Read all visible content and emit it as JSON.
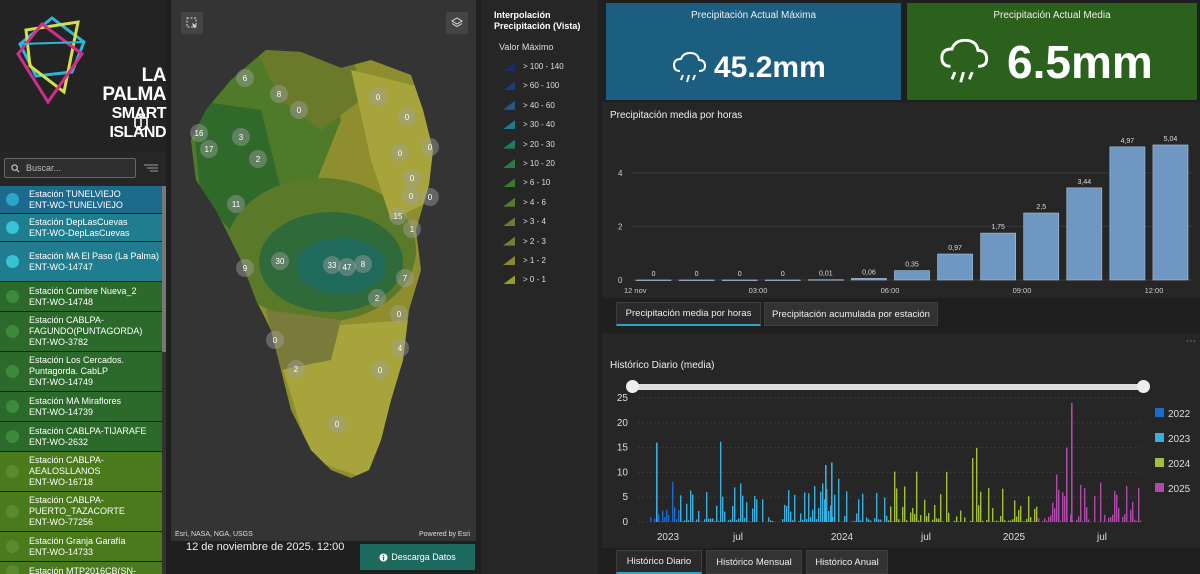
{
  "logo": {
    "line1": "LA PALMA",
    "line2": "SMART ISLAND"
  },
  "search": {
    "placeholder": "Buscar..."
  },
  "stations": [
    {
      "name": "Estación TUNELVIEJO",
      "code": "ENT-WO-TUNELVIEJO",
      "color": "#1c6a8c",
      "dot": "#2aa6c7"
    },
    {
      "name": "Estación DepLasCuevas",
      "code": "ENT-WO-DepLasCuevas",
      "color": "#1f7d8f",
      "dot": "#37c2d6"
    },
    {
      "name": "Estación MA El Paso (La Palma)",
      "code": "ENT-WO-14747",
      "color": "#1f7d8f",
      "dot": "#37c2d6"
    },
    {
      "name": "Estación Cumbre Nueva_2",
      "code": "ENT-WO-14748",
      "color": "#2c6a2c",
      "dot": "#3c8a3c"
    },
    {
      "name": "Estación CABLPA-FAGUNDO(PUNTAGORDA)",
      "code": "ENT-WO-3782",
      "color": "#2c6a2c",
      "dot": "#3c8a3c"
    },
    {
      "name": "Estación Los Cercados. Puntagorda. CabLP",
      "code": "ENT-WO-14749",
      "color": "#2c6a2c",
      "dot": "#3c8a3c"
    },
    {
      "name": "Estación MA Miraflores",
      "code": "ENT-WO-14739",
      "color": "#2c6a2c",
      "dot": "#3c8a3c"
    },
    {
      "name": "Estación CABLPA-TIJARAFE",
      "code": "ENT-WO-2632",
      "color": "#2c6a2c",
      "dot": "#3c8a3c"
    },
    {
      "name": "Estación CABLPA-AEALOSLLANOS",
      "code": "ENT-WO-16718",
      "color": "#4a7a1c",
      "dot": "#5a8a2c"
    },
    {
      "name": "Estación CABLPA-PUERTO_TAZACORTE",
      "code": "ENT-WO-77256",
      "color": "#4a7a1c",
      "dot": "#5a8a2c"
    },
    {
      "name": "Estación Granja Garafía",
      "code": "ENT-WO-14733",
      "color": "#4a7a1c",
      "dot": "#5a8a2c"
    },
    {
      "name": "Estación MTP2016CB(SN-",
      "code": "",
      "color": "#4a7a1c",
      "dot": "#5a8a2c"
    }
  ],
  "map": {
    "attribution": "Esri, NASA, NGA, USGS",
    "powered": "Powered by Esri",
    "labels": [
      "6",
      "8",
      "0",
      "0",
      "0",
      "16",
      "17",
      "3",
      "2",
      "0",
      "0",
      "0",
      "0",
      "0",
      "11",
      "15",
      "1",
      "9",
      "30",
      "33",
      "47",
      "8",
      "7",
      "2",
      "0",
      "0",
      "4",
      "0",
      "2",
      "0"
    ]
  },
  "footer": {
    "date": "12 de noviembre de 2025. 12:00",
    "download": "Descarga Datos"
  },
  "legend": {
    "title": "Interpolación Precipitación (Vista)",
    "subtitle": "Valor Máximo",
    "items": [
      {
        "label": "> 100 - 140",
        "color": "#1a2a6a"
      },
      {
        "label": "> 60 - 100",
        "color": "#1c3c7a"
      },
      {
        "label": "> 40 - 60",
        "color": "#1f5a8a"
      },
      {
        "label": "> 30 - 40",
        "color": "#1f7a8a"
      },
      {
        "label": "> 20 - 30",
        "color": "#1f7a6a"
      },
      {
        "label": "> 10 - 20",
        "color": "#2a7a4a"
      },
      {
        "label": "> 6 - 10",
        "color": "#3a7a2a"
      },
      {
        "label": "> 4 - 6",
        "color": "#5a7a2a"
      },
      {
        "label": "> 3 - 4",
        "color": "#6a7a3a"
      },
      {
        "label": "> 2 - 3",
        "color": "#7a7a3a"
      },
      {
        "label": "> 1 - 2",
        "color": "#8a8a2a"
      },
      {
        "label": "> 0 - 1",
        "color": "#9a9a2a"
      }
    ]
  },
  "kpis": {
    "max": {
      "title": "Precipitación Actual Máxima",
      "value": "45.2mm",
      "color": "#1c5e80"
    },
    "mean": {
      "title": "Precipitación Actual Media",
      "value": "6.5mm",
      "color": "#2c611d"
    }
  },
  "tabs_hourly": [
    "Precipitación media por horas",
    "Precipitación acumulada por estación"
  ],
  "tabs_history": [
    "Histórico Diario",
    "Histórico Mensual",
    "Histórico Anual"
  ],
  "history_title": "Histórico Diario (media)",
  "chart_data": [
    {
      "type": "bar",
      "title": "Precipitación media por horas",
      "categories": [
        "00",
        "01",
        "02",
        "03",
        "04",
        "05",
        "06",
        "07",
        "08",
        "09",
        "10",
        "11",
        "12"
      ],
      "values": [
        0,
        0,
        0,
        0,
        0.01,
        0.06,
        0.35,
        0.97,
        1.75,
        2.5,
        3.44,
        4.97,
        5.04
      ],
      "labels": [
        "0",
        "0",
        "0",
        "0",
        "0,01",
        "0,06",
        "0,35",
        "0,97",
        "1,75",
        "2,5",
        "3,44",
        "4,97",
        "5,04"
      ],
      "x_ticks": [
        "12 nov",
        "03:00",
        "06:00",
        "09:00",
        "12:00"
      ],
      "y_ticks": [
        "0",
        "2",
        "4"
      ],
      "ylim": [
        0,
        5.3
      ]
    },
    {
      "type": "bar",
      "title": "Histórico Diario (media)",
      "series": [
        {
          "name": "2022",
          "color": "#1a6ad0"
        },
        {
          "name": "2023",
          "color": "#3aaede"
        },
        {
          "name": "2024",
          "color": "#a0c03a"
        },
        {
          "name": "2025",
          "color": "#b04aa8"
        }
      ],
      "y_ticks": [
        "0",
        "5",
        "10",
        "15",
        "20",
        "25"
      ],
      "x_ticks": [
        "2023",
        "jul",
        "2024",
        "jul",
        "2025",
        "jul"
      ],
      "ylim": [
        0,
        25
      ]
    }
  ]
}
